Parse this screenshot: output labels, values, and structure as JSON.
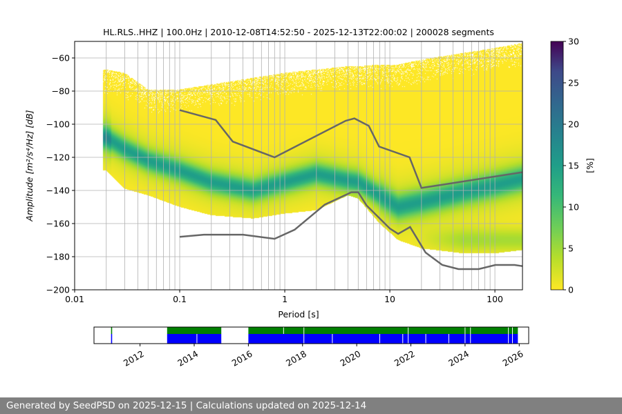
{
  "chart_data": {
    "type": "heatmap",
    "title": "HL.RLS..HHZ | 100.0Hz | 2010-12-08T14:52:50 - 2025-12-13T22:00:02 | 200028 segments",
    "xlabel": "Period [s]",
    "ylabel": "Amplitude [m²/s⁴/Hz] [dB]",
    "x_scale": "log",
    "xlim": [
      0.01,
      183
    ],
    "ylim": [
      -200,
      -50
    ],
    "x_ticks": [
      {
        "value": 0.01,
        "label": "0.01"
      },
      {
        "value": 0.1,
        "label": "0.1"
      },
      {
        "value": 1,
        "label": "1"
      },
      {
        "value": 10,
        "label": "10"
      },
      {
        "value": 100,
        "label": "100"
      }
    ],
    "y_ticks": [
      -200,
      -180,
      -160,
      -140,
      -120,
      -100,
      -80,
      -60
    ],
    "grid": true,
    "colorbar": {
      "label": "[%]",
      "range": [
        0,
        30
      ],
      "ticks": [
        0,
        5,
        10,
        15,
        20,
        25,
        30
      ],
      "colormap": "viridis_r"
    },
    "distribution": {
      "periods": [
        0.02,
        0.03,
        0.05,
        0.1,
        0.2,
        0.5,
        1,
        2,
        4,
        5,
        8,
        12,
        20,
        50,
        100,
        183
      ],
      "mode_db": [
        -108,
        -115,
        -122,
        -128,
        -135,
        -140,
        -135,
        -130,
        -134,
        -135,
        -143,
        -150,
        -147,
        -141,
        -137,
        -133
      ],
      "upper_db": [
        -68,
        -70,
        -80,
        -80,
        -77,
        -73,
        -70,
        -68,
        -66,
        -66,
        -65,
        -65,
        -62,
        -58,
        -55,
        -52
      ],
      "lower_db": [
        -128,
        -139,
        -143,
        -150,
        -155,
        -157,
        -154,
        -152,
        -143,
        -145,
        -160,
        -170,
        -175,
        -178,
        -178,
        -176
      ],
      "mode_peak_percent": 12
    },
    "series": [
      {
        "name": "NHNM",
        "color": "#666666",
        "x": [
          0.1,
          0.22,
          0.32,
          0.8,
          3.8,
          4.6,
          6.3,
          7.9,
          15.4,
          20,
          183
        ],
        "y": [
          -91.5,
          -97.4,
          -110.5,
          -120,
          -97.9,
          -96.5,
          -101,
          -113.5,
          -120,
          -138.5,
          -129
        ]
      },
      {
        "name": "NLNM",
        "color": "#666666",
        "x": [
          0.1,
          0.17,
          0.4,
          0.8,
          1.24,
          2.4,
          4.3,
          5,
          6,
          10,
          12,
          15.6,
          21.9,
          31.6,
          45,
          70,
          101,
          154,
          183
        ],
        "y": [
          -168,
          -166.7,
          -166.7,
          -169.2,
          -163.7,
          -148.6,
          -141.1,
          -141.1,
          -149,
          -163,
          -166.2,
          -162.1,
          -177.5,
          -185,
          -187.5,
          -187.5,
          -185,
          -185,
          -185.7
        ]
      }
    ]
  },
  "coverage": {
    "xlim": [
      2010.3,
      2026.35
    ],
    "ticks": [
      "2012",
      "2014",
      "2016",
      "2018",
      "2020",
      "2022",
      "2024",
      "2026"
    ],
    "tick_values": [
      2012,
      2014,
      2016,
      2018,
      2020,
      2022,
      2024,
      2026
    ],
    "data_color": "#0000ff",
    "processed_color": "#008000",
    "intervals": [
      [
        2010.93,
        2010.97
      ],
      [
        2013.0,
        2015.0
      ],
      [
        2016.0,
        2025.95
      ]
    ],
    "processed_gaps": [
      2017.3,
      2018.05,
      2021.9,
      2024.0,
      2024.2,
      2025.6,
      2025.75
    ],
    "data_gaps": [
      2014.1,
      2018.05,
      2019.1,
      2020.85,
      2021.7,
      2021.9,
      2022.55,
      2023.4,
      2024.0,
      2024.2,
      2025.6,
      2025.75
    ]
  },
  "footer": {
    "text": "Generated by SeedPSD on 2025-12-15 | Calculations updated on 2025-12-14"
  }
}
